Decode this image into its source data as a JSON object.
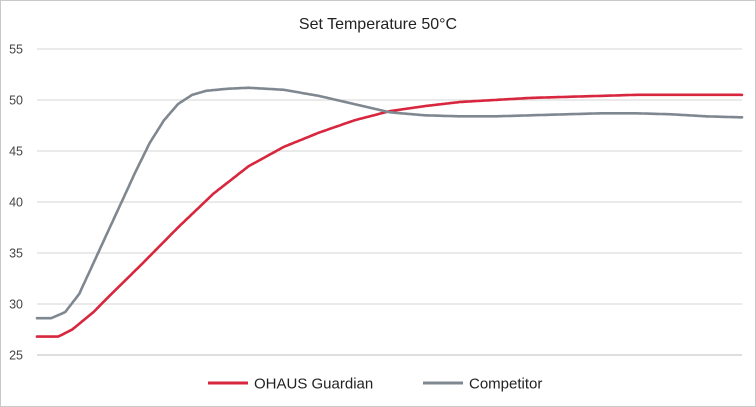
{
  "chart_data": {
    "type": "line",
    "title": "Set Temperature 50°C",
    "xlabel": "",
    "ylabel": "",
    "ylim": [
      25,
      55
    ],
    "yticks": [
      25,
      30,
      35,
      40,
      45,
      50,
      55
    ],
    "xlim": [
      0,
      100
    ],
    "grid": true,
    "legend": "bottom-center",
    "series": [
      {
        "name": "OHAUS Guardian",
        "color": "#d7263d",
        "x": [
          0,
          3,
          5,
          8,
          10,
          15,
          20,
          25,
          30,
          35,
          40,
          45,
          50,
          55,
          60,
          65,
          70,
          75,
          80,
          85,
          90,
          95,
          100
        ],
        "y": [
          26.8,
          26.8,
          27.5,
          29.2,
          30.6,
          34.0,
          37.5,
          40.8,
          43.5,
          45.4,
          46.8,
          48.0,
          48.9,
          49.4,
          49.8,
          50.0,
          50.2,
          50.3,
          50.4,
          50.5,
          50.5,
          50.5,
          50.5
        ]
      },
      {
        "name": "Competitor",
        "color": "#7f8890",
        "x": [
          0,
          2,
          4,
          6,
          8,
          10,
          12,
          14,
          16,
          18,
          20,
          22,
          24,
          27,
          30,
          35,
          40,
          45,
          50,
          55,
          60,
          65,
          70,
          75,
          80,
          85,
          90,
          95,
          100
        ],
        "y": [
          28.6,
          28.6,
          29.2,
          31.0,
          34.0,
          37.0,
          40.0,
          43.0,
          45.8,
          48.0,
          49.6,
          50.5,
          50.9,
          51.1,
          51.2,
          51.0,
          50.4,
          49.6,
          48.8,
          48.5,
          48.4,
          48.4,
          48.5,
          48.6,
          48.7,
          48.7,
          48.6,
          48.4,
          48.3
        ]
      }
    ]
  }
}
